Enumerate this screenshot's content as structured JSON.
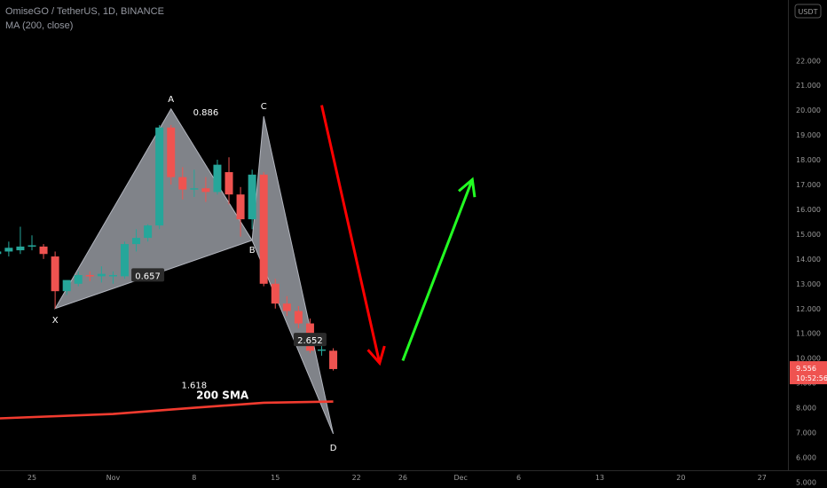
{
  "header": {
    "symbol_line": "OmiseGO / TetherUS, 1D, BINANCE",
    "indicator_line": "MA (200, close)"
  },
  "currency_badge": "USDT",
  "colors": {
    "background": "#000000",
    "up_candle": "#26a69a",
    "down_candle": "#ef5350",
    "pattern_fill": "#b2b5be",
    "sma_line": "#f23b2f",
    "bearish_arrow": "#ff0000",
    "bullish_arrow": "#22ff22",
    "price_badge": "#ef5350"
  },
  "chart_data": {
    "type": "candlestick",
    "y_ticks": [
      "22.000",
      "21.000",
      "20.000",
      "19.000",
      "18.000",
      "17.000",
      "16.000",
      "15.000",
      "14.000",
      "13.000",
      "12.000",
      "11.000",
      "10.000",
      "9.000",
      "8.000",
      "7.000",
      "6.000",
      "5.000"
    ],
    "x_ticks": [
      {
        "label": "25",
        "date": "2021-10-25"
      },
      {
        "label": "Nov",
        "date": "2021-11-01"
      },
      {
        "label": "8",
        "date": "2021-11-08"
      },
      {
        "label": "15",
        "date": "2021-11-15"
      },
      {
        "label": "22",
        "date": "2021-11-22"
      },
      {
        "label": "26",
        "date": "2021-11-26"
      },
      {
        "label": "Dec",
        "date": "2021-12-01"
      },
      {
        "label": "6",
        "date": "2021-12-06"
      },
      {
        "label": "13",
        "date": "2021-12-13"
      },
      {
        "label": "20",
        "date": "2021-12-20"
      },
      {
        "label": "27",
        "date": "2021-12-27"
      }
    ],
    "candles": [
      {
        "date": "2021-10-21",
        "o": 14.8,
        "h": 14.9,
        "c": 14.35,
        "l": 14.3
      },
      {
        "date": "2021-10-22",
        "o": 14.2,
        "h": 14.55,
        "c": 14.3,
        "l": 14.0
      },
      {
        "date": "2021-10-23",
        "o": 14.3,
        "h": 14.7,
        "c": 14.45,
        "l": 14.1
      },
      {
        "date": "2021-10-24",
        "o": 14.35,
        "h": 15.3,
        "c": 14.5,
        "l": 14.2
      },
      {
        "date": "2021-10-25",
        "o": 14.5,
        "h": 14.95,
        "c": 14.55,
        "l": 14.35
      },
      {
        "date": "2021-10-26",
        "o": 14.5,
        "h": 14.6,
        "c": 14.2,
        "l": 14.0
      },
      {
        "date": "2021-10-27",
        "o": 14.1,
        "h": 14.3,
        "c": 12.7,
        "l": 12.0
      },
      {
        "date": "2021-10-28",
        "o": 12.7,
        "h": 13.1,
        "c": 13.15,
        "l": 12.55
      },
      {
        "date": "2021-10-29",
        "o": 13.0,
        "h": 13.5,
        "c": 13.35,
        "l": 12.9
      },
      {
        "date": "2021-10-30",
        "o": 13.35,
        "h": 13.5,
        "c": 13.3,
        "l": 13.1
      },
      {
        "date": "2021-10-31",
        "o": 13.3,
        "h": 13.7,
        "c": 13.4,
        "l": 13.05
      },
      {
        "date": "2021-11-01",
        "o": 13.3,
        "h": 13.5,
        "c": 13.35,
        "l": 13.0
      },
      {
        "date": "2021-11-02",
        "o": 13.3,
        "h": 14.7,
        "c": 14.6,
        "l": 13.2
      },
      {
        "date": "2021-11-03",
        "o": 14.6,
        "h": 15.2,
        "c": 14.85,
        "l": 14.3
      },
      {
        "date": "2021-11-04",
        "o": 14.85,
        "h": 15.4,
        "c": 15.35,
        "l": 14.7
      },
      {
        "date": "2021-11-05",
        "o": 15.35,
        "h": 19.4,
        "c": 19.3,
        "l": 15.2
      },
      {
        "date": "2021-11-06",
        "o": 19.3,
        "h": 19.4,
        "c": 17.3,
        "l": 17.0
      },
      {
        "date": "2021-11-07",
        "o": 17.3,
        "h": 17.7,
        "c": 16.8,
        "l": 16.4
      },
      {
        "date": "2021-11-08",
        "o": 16.8,
        "h": 17.6,
        "c": 16.85,
        "l": 16.5
      },
      {
        "date": "2021-11-09",
        "o": 16.85,
        "h": 17.3,
        "c": 16.7,
        "l": 16.3
      },
      {
        "date": "2021-11-10",
        "o": 16.7,
        "h": 18.0,
        "c": 17.8,
        "l": 16.6
      },
      {
        "date": "2021-11-11",
        "o": 17.5,
        "h": 18.1,
        "c": 16.6,
        "l": 16.2
      },
      {
        "date": "2021-11-12",
        "o": 16.6,
        "h": 16.9,
        "c": 15.6,
        "l": 14.9
      },
      {
        "date": "2021-11-13",
        "o": 15.6,
        "h": 17.6,
        "c": 17.4,
        "l": 15.2
      },
      {
        "date": "2021-11-14",
        "o": 17.4,
        "h": 17.5,
        "c": 13.0,
        "l": 12.9
      },
      {
        "date": "2021-11-15",
        "o": 13.0,
        "h": 13.2,
        "c": 12.2,
        "l": 12.0
      },
      {
        "date": "2021-11-16",
        "o": 12.2,
        "h": 12.5,
        "c": 11.9,
        "l": 11.7
      },
      {
        "date": "2021-11-17",
        "o": 11.9,
        "h": 12.1,
        "c": 11.4,
        "l": 11.2
      },
      {
        "date": "2021-11-18",
        "o": 11.4,
        "h": 11.6,
        "c": 10.3,
        "l": 10.2
      },
      {
        "date": "2021-11-19",
        "o": 10.3,
        "h": 10.9,
        "c": 10.35,
        "l": 10.1
      },
      {
        "date": "2021-11-20",
        "o": 10.3,
        "h": 10.4,
        "c": 9.56,
        "l": 9.5
      }
    ],
    "sma200": [
      {
        "date": "2021-10-21",
        "v": 7.55
      },
      {
        "date": "2021-11-01",
        "v": 7.75
      },
      {
        "date": "2021-11-08",
        "v": 8.0
      },
      {
        "date": "2021-11-14",
        "v": 8.2
      },
      {
        "date": "2021-11-20",
        "v": 8.25
      }
    ],
    "harmonic_pattern": {
      "points": [
        {
          "label": "X",
          "date": "2021-10-27",
          "price": 12.0
        },
        {
          "label": "A",
          "date": "2021-11-06",
          "price": 20.05
        },
        {
          "label": "B",
          "date": "2021-11-13",
          "price": 14.75
        },
        {
          "label": "C",
          "date": "2021-11-14",
          "price": 19.75
        },
        {
          "label": "D",
          "date": "2021-11-20",
          "price": 6.95
        }
      ],
      "ratios": [
        {
          "value": "0.886",
          "date": "2021-11-09",
          "price": 19.9
        },
        {
          "value": "0.657",
          "date": "2021-11-04",
          "price": 13.3
        },
        {
          "value": "2.652",
          "date": "2021-11-18",
          "price": 10.7
        },
        {
          "value": "1.618",
          "date": "2021-11-08",
          "price": 8.9
        }
      ]
    },
    "sma_annotation": {
      "text": "200 SMA",
      "date": "2021-11-12",
      "price": 8.5
    },
    "arrows": [
      {
        "name": "bearish",
        "from": {
          "date": "2021-11-19",
          "price": 20.2
        },
        "to": {
          "date": "2021-11-24",
          "price": 9.8
        }
      },
      {
        "name": "bullish",
        "from": {
          "date": "2021-11-26",
          "price": 9.9
        },
        "to": {
          "date": "2021-12-02",
          "price": 17.2
        }
      }
    ],
    "last_price": {
      "value": "9.556",
      "countdown": "10:52:56"
    }
  }
}
